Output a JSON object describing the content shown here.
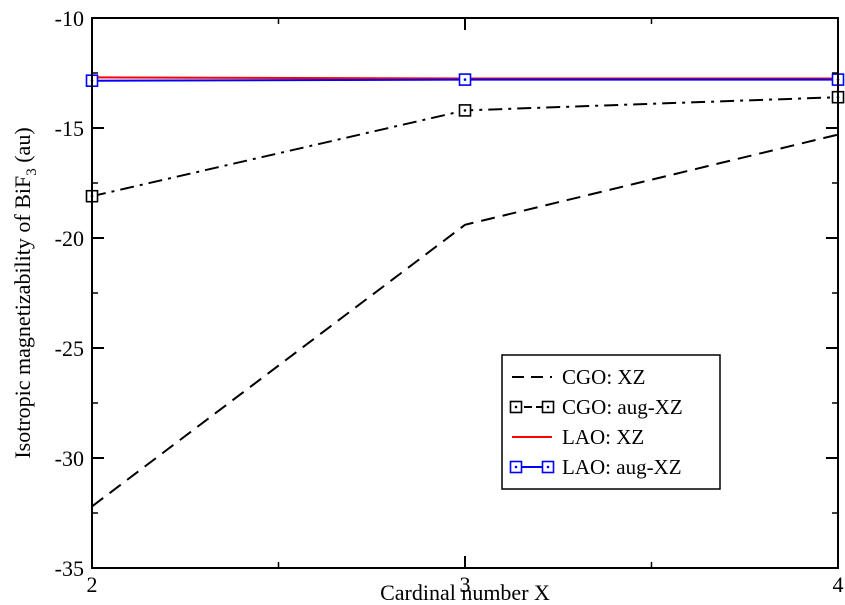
{
  "chart_data": {
    "type": "line",
    "title": "",
    "xlabel": "Cardinal number X",
    "ylabel": {
      "prefix": "Isotropic magnetizability of BiF",
      "sub": "3",
      "suffix": " (au)"
    },
    "x": [
      2,
      3,
      4
    ],
    "xlim": [
      2,
      4
    ],
    "ylim": [
      -35,
      -10
    ],
    "xticks": [
      "2",
      "3",
      "4"
    ],
    "yticks": [
      "-35",
      "-30",
      "-25",
      "-20",
      "-15",
      "-10"
    ],
    "grid": false,
    "legend_position": "lower-right",
    "series": [
      {
        "name": "CGO: XZ",
        "values": [
          -32.2,
          -19.4,
          -15.3
        ],
        "color": "#000000",
        "dash": "dashed",
        "marker": "none"
      },
      {
        "name": "CGO: aug-XZ",
        "values": [
          -18.1,
          -14.2,
          -13.6
        ],
        "color": "#000000",
        "dash": "dashdot",
        "marker": "square-dot"
      },
      {
        "name": "LAO: XZ",
        "values": [
          -12.7,
          -12.75,
          -12.75
        ],
        "color": "#ff0000",
        "dash": "solid",
        "marker": "none"
      },
      {
        "name": "LAO: aug-XZ",
        "values": [
          -12.85,
          -12.8,
          -12.8
        ],
        "color": "#0000ff",
        "dash": "solid",
        "marker": "square-dot"
      }
    ]
  }
}
